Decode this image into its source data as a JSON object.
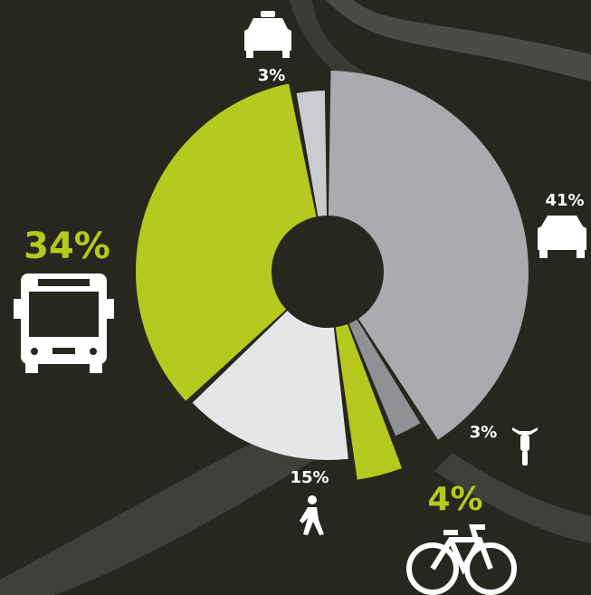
{
  "chart_data": {
    "type": "pie",
    "values": [
      3,
      41,
      3,
      4,
      15,
      34
    ],
    "value_labels": [
      "3%",
      "41%",
      "3%",
      "4%",
      "15%",
      "34%"
    ],
    "colors": [
      "#c9cbce",
      "#a9abae",
      "#8f9195",
      "#b5c91f",
      "#e5e6e8",
      "#b5c91f"
    ]
  }
}
